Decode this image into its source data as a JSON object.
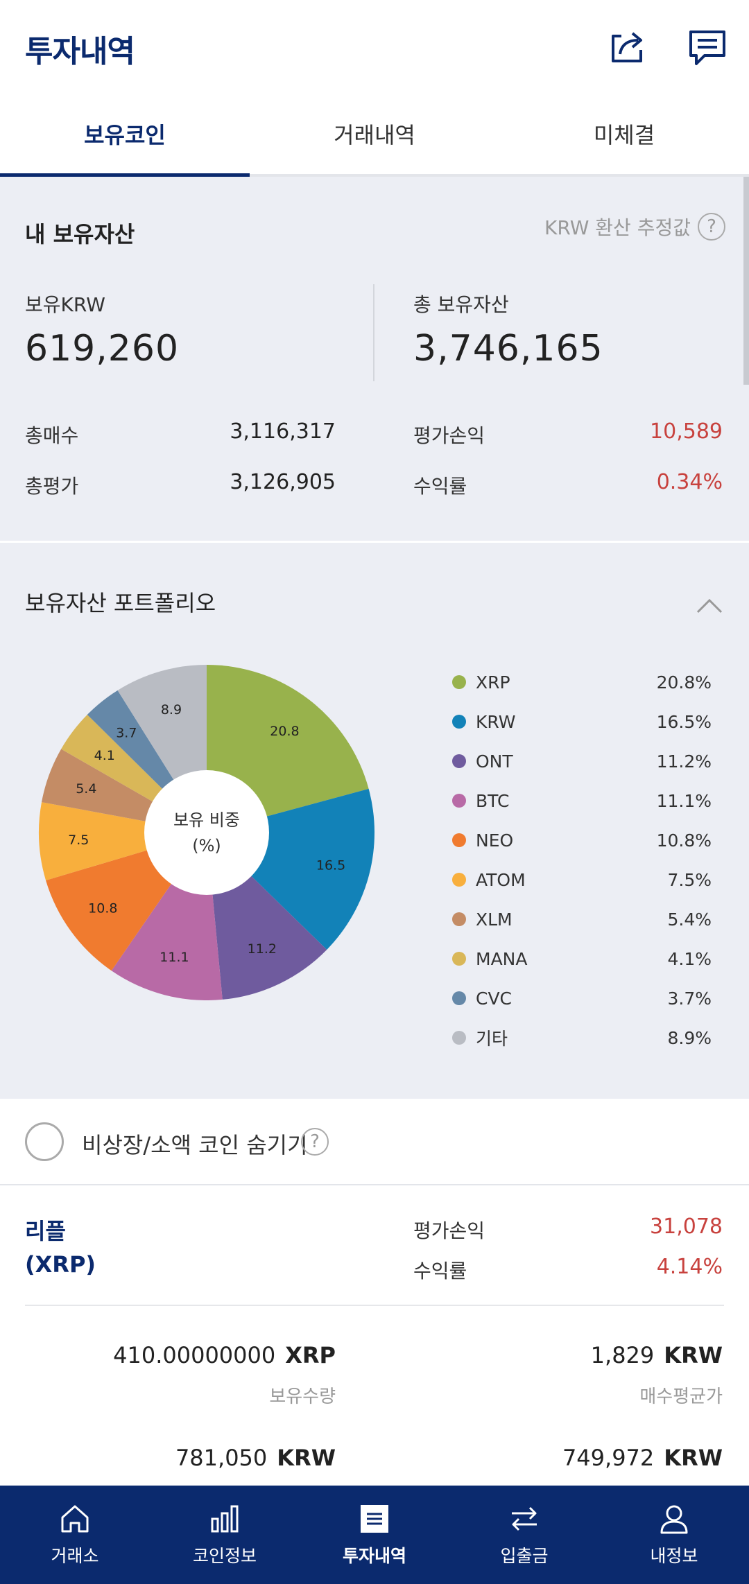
{
  "header": {
    "title": "투자내역"
  },
  "tabs": [
    {
      "label": "보유코인",
      "active": true
    },
    {
      "label": "거래내역",
      "active": false
    },
    {
      "label": "미체결",
      "active": false
    }
  ],
  "summary": {
    "title": "내 보유자산",
    "note": "KRW 환산 추정값",
    "held_krw_label": "보유KRW",
    "held_krw_value": "619,260",
    "total_assets_label": "총 보유자산",
    "total_assets_value": "3,746,165",
    "total_buy_label": "총매수",
    "total_buy_value": "3,116,317",
    "total_eval_label": "총평가",
    "total_eval_value": "3,126,905",
    "pnl_label": "평가손익",
    "pnl_value": "10,589",
    "rate_label": "수익률",
    "rate_value": "0.34%"
  },
  "portfolio": {
    "title": "보유자산 포트폴리오",
    "center_line1": "보유 비중",
    "center_line2": "(%)"
  },
  "chart_data": {
    "type": "pie",
    "title": "보유 비중 (%)",
    "categories": [
      "XRP",
      "KRW",
      "ONT",
      "BTC",
      "NEO",
      "ATOM",
      "XLM",
      "MANA",
      "CVC",
      "기타"
    ],
    "values": [
      20.8,
      16.5,
      11.2,
      11.1,
      10.8,
      7.5,
      5.4,
      4.1,
      3.7,
      8.9
    ],
    "labels": [
      "20.8",
      "16.5",
      "11.2",
      "11.1",
      "10.8",
      "7.5",
      "5.4",
      "4.1",
      "3.7",
      "8.9"
    ],
    "legend_pcts": [
      "20.8%",
      "16.5%",
      "11.2%",
      "11.1%",
      "10.8%",
      "7.5%",
      "5.4%",
      "4.1%",
      "3.7%",
      "8.9%"
    ],
    "colors": [
      "#98b24c",
      "#1282b8",
      "#6f5b9e",
      "#b86aa6",
      "#f07b2f",
      "#f8af3d",
      "#c48c65",
      "#d9b758",
      "#6588a8",
      "#b9bcc3"
    ],
    "legend_placement": "right",
    "donut": true
  },
  "hide_toggle": {
    "label": "비상장/소액 코인 숨기기",
    "checked": false
  },
  "coin": {
    "name_line1": "리플",
    "name_line2": "(XRP)",
    "pnl_label": "평가손익",
    "pnl_value": "31,078",
    "rate_label": "수익률",
    "rate_value": "4.14%",
    "qty_value": "410.00000000",
    "qty_unit": "XRP",
    "qty_label": "보유수량",
    "avg_value": "1,829",
    "avg_unit": "KRW",
    "avg_label": "매수평균가",
    "eval_value": "781,050",
    "eval_unit": "KRW",
    "buy_value": "749,972",
    "buy_unit": "KRW"
  },
  "nav": [
    {
      "label": "거래소",
      "icon": "home-icon"
    },
    {
      "label": "코인정보",
      "icon": "bar-chart-icon"
    },
    {
      "label": "투자내역",
      "icon": "list-icon",
      "active": true
    },
    {
      "label": "입출금",
      "icon": "transfer-icon"
    },
    {
      "label": "내정보",
      "icon": "user-icon"
    }
  ]
}
